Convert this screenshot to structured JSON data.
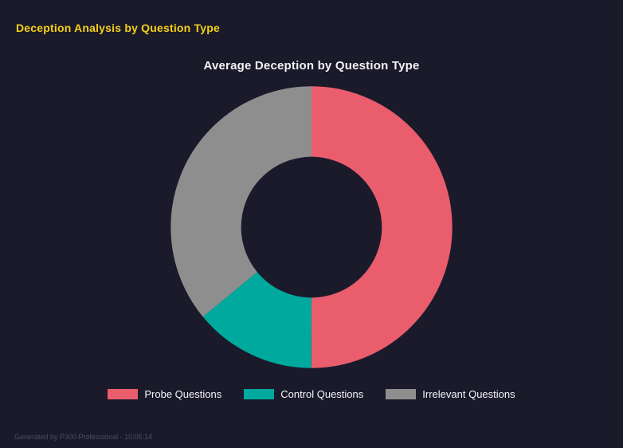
{
  "page": {
    "header_title": "Deception Analysis by Question Type",
    "footer_note": "Generated by P300 Professional - 10:05:14"
  },
  "chart_data": {
    "type": "pie",
    "subtype": "doughnut",
    "title": "Average Deception by Question Type",
    "categories": [
      "Probe Questions",
      "Control Questions",
      "Irrelevant Questions"
    ],
    "values": [
      50,
      14,
      36
    ],
    "values_unit": "percent-of-circle (estimated from arc angles)",
    "colors": [
      "#e95d6d",
      "#00a99d",
      "#8e8e8e"
    ],
    "start_angle": "top",
    "direction": "clockwise",
    "cutout_ratio": 0.5,
    "legend_position": "bottom",
    "background": "#1a1a2b",
    "title_color": "#f2f2f5",
    "header_accent_color": "#f5d017"
  }
}
